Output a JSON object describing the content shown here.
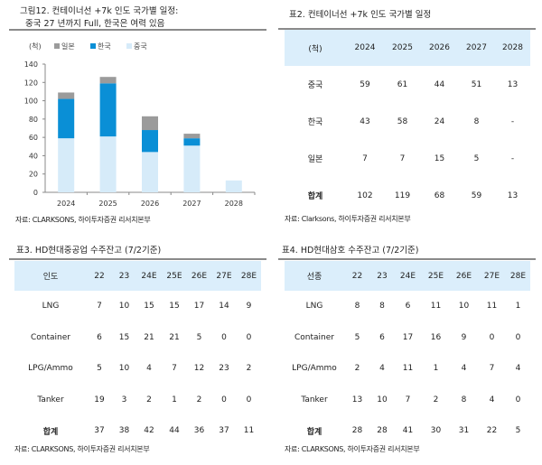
{
  "figure12": {
    "title_line1": "그림12. 컨테이너선 +7k 인도 국가별 일정:",
    "title_line2": "중국 27 년까지 Full, 한국은 여력 있음",
    "source": "자료: CLARKSONS, 하이투자증권 리서치본부"
  },
  "chart_data": {
    "type": "bar",
    "stacked": true,
    "unit_label": "(척)",
    "categories": [
      "2024",
      "2025",
      "2026",
      "2027",
      "2028"
    ],
    "series": [
      {
        "name": "중국",
        "color": "#d6ebf9",
        "values": [
          59,
          61,
          44,
          51,
          13
        ]
      },
      {
        "name": "한국",
        "color": "#0a8fd6",
        "values": [
          43,
          58,
          24,
          8,
          0
        ]
      },
      {
        "name": "일본",
        "color": "#9b9b9b",
        "values": [
          7,
          7,
          15,
          5,
          0
        ]
      }
    ],
    "legend_order": [
      "일본",
      "한국",
      "중국"
    ],
    "ylim": [
      0,
      140
    ],
    "yticks": [
      0,
      20,
      40,
      60,
      80,
      100,
      120,
      140
    ],
    "legend_position": "top-left",
    "grid": false
  },
  "table2": {
    "title": "표2.  컨테이너선 +7k 인도 국가별 일정",
    "header": [
      "(척)",
      "2024",
      "2025",
      "2026",
      "2027",
      "2028"
    ],
    "rows": [
      [
        "중국",
        "59",
        "61",
        "44",
        "51",
        "13"
      ],
      [
        "한국",
        "43",
        "58",
        "24",
        "8",
        "-"
      ],
      [
        "일본",
        "7",
        "7",
        "15",
        "5",
        "-"
      ],
      [
        "합계",
        "102",
        "119",
        "68",
        "59",
        "13"
      ]
    ],
    "source": "자료: Clarksons, 하이투자증권 리서치본부"
  },
  "table3": {
    "title": "표3.  HD현대중공업 수주잔고 (7/2기준)",
    "header": [
      "인도",
      "22",
      "23",
      "24E",
      "25E",
      "26E",
      "27E",
      "28E"
    ],
    "rows": [
      [
        "LNG",
        "7",
        "10",
        "15",
        "15",
        "17",
        "14",
        "9"
      ],
      [
        "Container",
        "6",
        "15",
        "21",
        "21",
        "5",
        "0",
        "0"
      ],
      [
        "LPG/Ammo",
        "5",
        "10",
        "4",
        "7",
        "12",
        "23",
        "2"
      ],
      [
        "Tanker",
        "19",
        "3",
        "2",
        "1",
        "2",
        "0",
        "0"
      ],
      [
        "합계",
        "37",
        "38",
        "42",
        "44",
        "36",
        "37",
        "11"
      ]
    ],
    "source": "자료: CLARKSONS, 하이투자증권 리서치본부"
  },
  "table4": {
    "title": "표4.  HD현대삼호 수주잔고 (7/2기준)",
    "header": [
      "선종",
      "22",
      "23",
      "24E",
      "25E",
      "26E",
      "27E",
      "28E"
    ],
    "rows": [
      [
        "LNG",
        "8",
        "8",
        "6",
        "11",
        "10",
        "11",
        "1"
      ],
      [
        "Container",
        "5",
        "6",
        "17",
        "16",
        "9",
        "0",
        "0"
      ],
      [
        "LPG/Ammo",
        "2",
        "4",
        "11",
        "1",
        "4",
        "7",
        "4"
      ],
      [
        "Tanker",
        "13",
        "10",
        "7",
        "2",
        "8",
        "4",
        "0"
      ],
      [
        "합계",
        "28",
        "28",
        "41",
        "30",
        "31",
        "22",
        "5"
      ]
    ],
    "source": "자료: CLARKSONS, 하이투자증권 리서치본부"
  }
}
